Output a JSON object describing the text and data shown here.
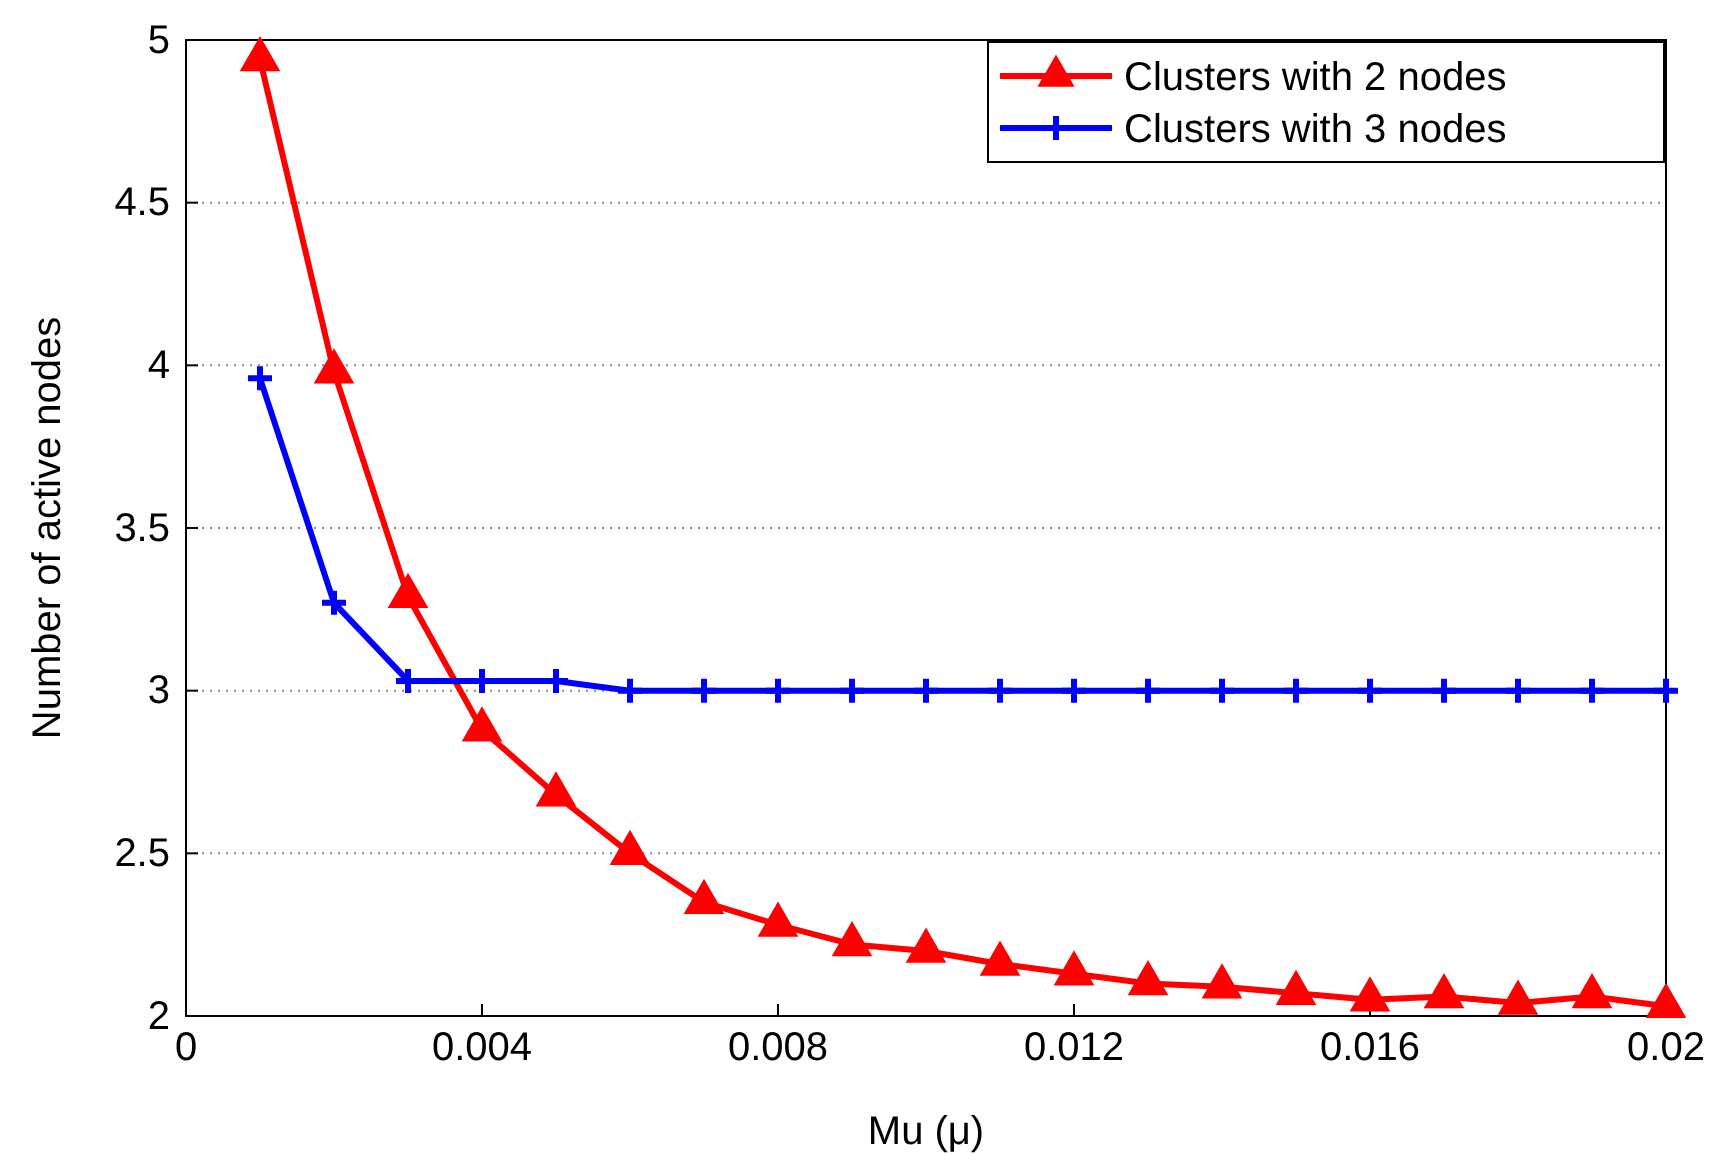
{
  "chart_data": {
    "type": "line",
    "xlabel": "Mu (μ)",
    "ylabel": "Number of active nodes",
    "x": [
      0.001,
      0.002,
      0.003,
      0.004,
      0.005,
      0.006,
      0.007,
      0.008,
      0.009,
      0.01,
      0.011,
      0.012,
      0.013,
      0.014,
      0.015,
      0.016,
      0.017,
      0.018,
      0.019,
      0.02
    ],
    "series": [
      {
        "name": "Clusters with 2 nodes",
        "color": "#ff0000",
        "marker": "triangle",
        "values": [
          4.94,
          3.98,
          3.29,
          2.88,
          2.68,
          2.5,
          2.35,
          2.28,
          2.22,
          2.2,
          2.16,
          2.13,
          2.1,
          2.09,
          2.07,
          2.05,
          2.06,
          2.04,
          2.06,
          2.03
        ]
      },
      {
        "name": "Clusters with 3 nodes",
        "color": "#0000ff",
        "marker": "cross",
        "values": [
          3.96,
          3.27,
          3.03,
          3.03,
          3.03,
          3.0,
          3.0,
          3.0,
          3.0,
          3.0,
          3.0,
          3.0,
          3.0,
          3.0,
          3.0,
          3.0,
          3.0,
          3.0,
          3.0,
          3.0
        ]
      }
    ],
    "xlim": [
      0,
      0.02
    ],
    "xticks": [
      0,
      0.004,
      0.008,
      0.012,
      0.016,
      0.02
    ],
    "ylim": [
      2,
      5
    ],
    "yticks": [
      2,
      2.5,
      3,
      3.5,
      4,
      4.5,
      5
    ],
    "grid": "y",
    "legend": "top right",
    "line_style": "solid"
  }
}
